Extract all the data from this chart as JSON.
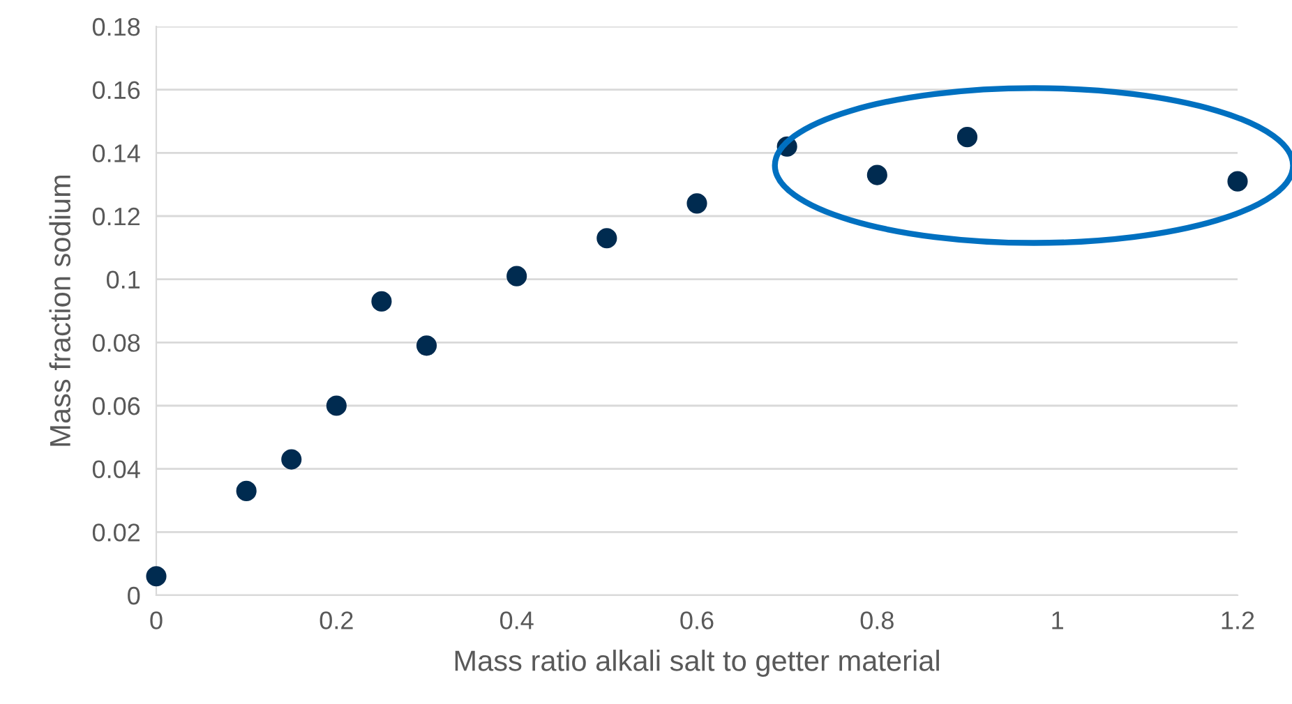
{
  "chart_data": {
    "type": "scatter",
    "xlabel": "Mass ratio alkali salt to getter material",
    "ylabel": "Mass fraction sodium",
    "x": [
      0,
      0.1,
      0.15,
      0.2,
      0.25,
      0.3,
      0.4,
      0.5,
      0.6,
      0.7,
      0.8,
      0.9,
      1.2
    ],
    "series": [
      {
        "color": "#002b50",
        "values": [
          0.006,
          0.033,
          0.043,
          0.06,
          0.093,
          0.079,
          0.101,
          0.113,
          0.124,
          0.142,
          0.133,
          0.145,
          0.131
        ]
      }
    ],
    "xlim": [
      0,
      1.2
    ],
    "xticks": [
      0,
      0.2,
      0.4,
      0.6,
      0.8,
      1,
      1.2
    ],
    "ylim": [
      0,
      0.18
    ],
    "yticks": [
      0,
      0.02,
      0.04,
      0.06,
      0.08,
      0.1,
      0.12,
      0.14,
      0.16,
      0.18
    ],
    "grid": "y",
    "marker": "circle"
  }
}
